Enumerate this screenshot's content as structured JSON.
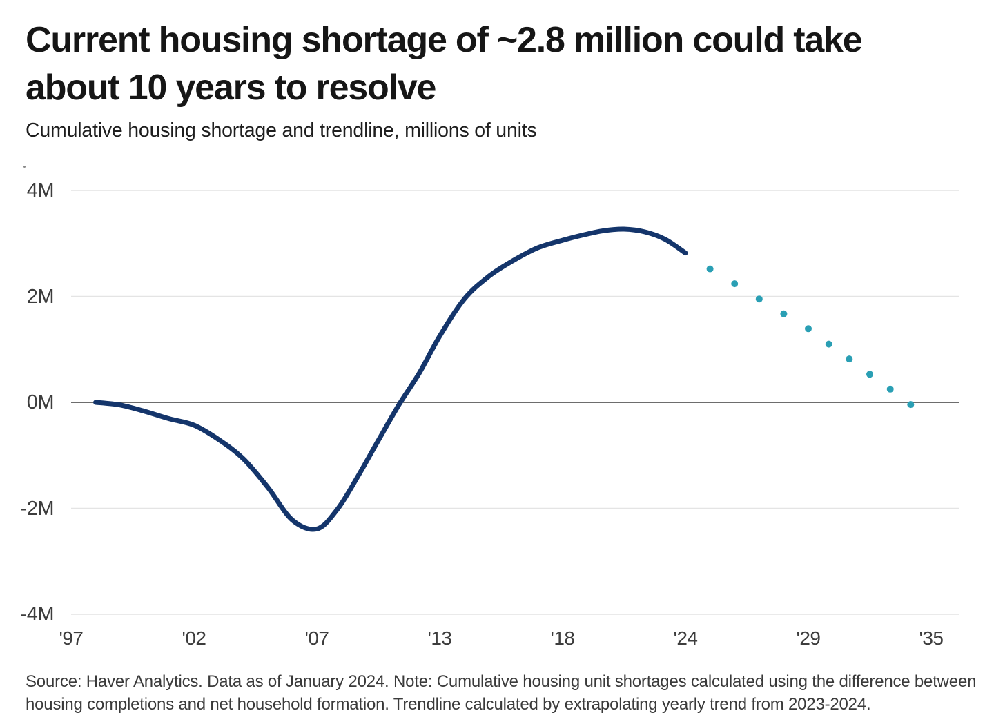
{
  "header": {
    "title_line1": "Current housing shortage of ~2.8 million could take",
    "title_line2": "about 10 years to resolve",
    "subtitle": "Cumulative housing shortage and trendline, millions of units"
  },
  "footer": {
    "source": "Source: Haver Analytics. Data as of January 2024. Note: Cumulative housing unit shortages calculated using the difference between housing completions and net household formation. Trendline calculated by extrapolating yearly trend from 2023-2024."
  },
  "colors": {
    "line": "#14356b",
    "trend_dots": "#2a9fb4",
    "gridline": "#e4e4e4",
    "zero_line": "#3d3d3d",
    "tick_text": "#3d3d3d"
  },
  "chart_data": {
    "type": "line",
    "title": "Current housing shortage of ~2.8 million could take about 10 years to resolve",
    "subtitle": "Cumulative housing shortage and trendline, millions of units",
    "xlabel": "",
    "ylabel": "millions of units",
    "ylim": [
      -4,
      4
    ],
    "xlim_years": [
      1997,
      2036
    ],
    "grid": "horizontal",
    "legend_position": "none",
    "y_ticks": [
      {
        "value": 4,
        "label": "4M"
      },
      {
        "value": 2,
        "label": "2M"
      },
      {
        "value": 0,
        "label": "0M"
      },
      {
        "value": -2,
        "label": "-2M"
      },
      {
        "value": -4,
        "label": "-4M"
      }
    ],
    "x_ticks": [
      {
        "year": 1997,
        "label": "'97"
      },
      {
        "year": 2002,
        "label": "'02"
      },
      {
        "year": 2007,
        "label": "'07"
      },
      {
        "year": 2013,
        "label": "'13"
      },
      {
        "year": 2018,
        "label": "'18"
      },
      {
        "year": 2024,
        "label": "'24"
      },
      {
        "year": 2029,
        "label": "'29"
      },
      {
        "year": 2035,
        "label": "'35"
      }
    ],
    "series": [
      {
        "name": "Cumulative housing shortage",
        "type": "line",
        "color": "#14356b",
        "points": [
          {
            "year": 1998,
            "value": 0.0
          },
          {
            "year": 1999,
            "value": -0.05
          },
          {
            "year": 2000,
            "value": -0.17
          },
          {
            "year": 2001,
            "value": -0.31
          },
          {
            "year": 2002,
            "value": -0.43
          },
          {
            "year": 2003,
            "value": -0.7
          },
          {
            "year": 2004,
            "value": -1.06
          },
          {
            "year": 2005,
            "value": -1.6
          },
          {
            "year": 2006,
            "value": -2.22
          },
          {
            "year": 2007,
            "value": -2.39
          },
          {
            "year": 2008,
            "value": -2.02
          },
          {
            "year": 2009,
            "value": -1.4
          },
          {
            "year": 2010,
            "value": -0.72
          },
          {
            "year": 2011,
            "value": -0.05
          },
          {
            "year": 2012,
            "value": 0.55
          },
          {
            "year": 2013,
            "value": 1.25
          },
          {
            "year": 2014,
            "value": 1.95
          },
          {
            "year": 2015,
            "value": 2.38
          },
          {
            "year": 2016,
            "value": 2.68
          },
          {
            "year": 2017,
            "value": 2.92
          },
          {
            "year": 2018,
            "value": 3.06
          },
          {
            "year": 2019,
            "value": 3.16
          },
          {
            "year": 2020,
            "value": 3.24
          },
          {
            "year": 2021,
            "value": 3.27
          },
          {
            "year": 2022,
            "value": 3.22
          },
          {
            "year": 2023,
            "value": 3.08
          },
          {
            "year": 2024,
            "value": 2.82
          }
        ]
      },
      {
        "name": "Trendline (extrapolated from 2023-2024 yearly trend)",
        "type": "scatter",
        "color": "#2a9fb4",
        "points": [
          {
            "year": 2025,
            "value": 2.52
          },
          {
            "year": 2026,
            "value": 2.24
          },
          {
            "year": 2027,
            "value": 1.95
          },
          {
            "year": 2028,
            "value": 1.67
          },
          {
            "year": 2029,
            "value": 1.39
          },
          {
            "year": 2030,
            "value": 1.1
          },
          {
            "year": 2031,
            "value": 0.82
          },
          {
            "year": 2032,
            "value": 0.53
          },
          {
            "year": 2033,
            "value": 0.25
          },
          {
            "year": 2034,
            "value": -0.04
          }
        ]
      }
    ]
  }
}
